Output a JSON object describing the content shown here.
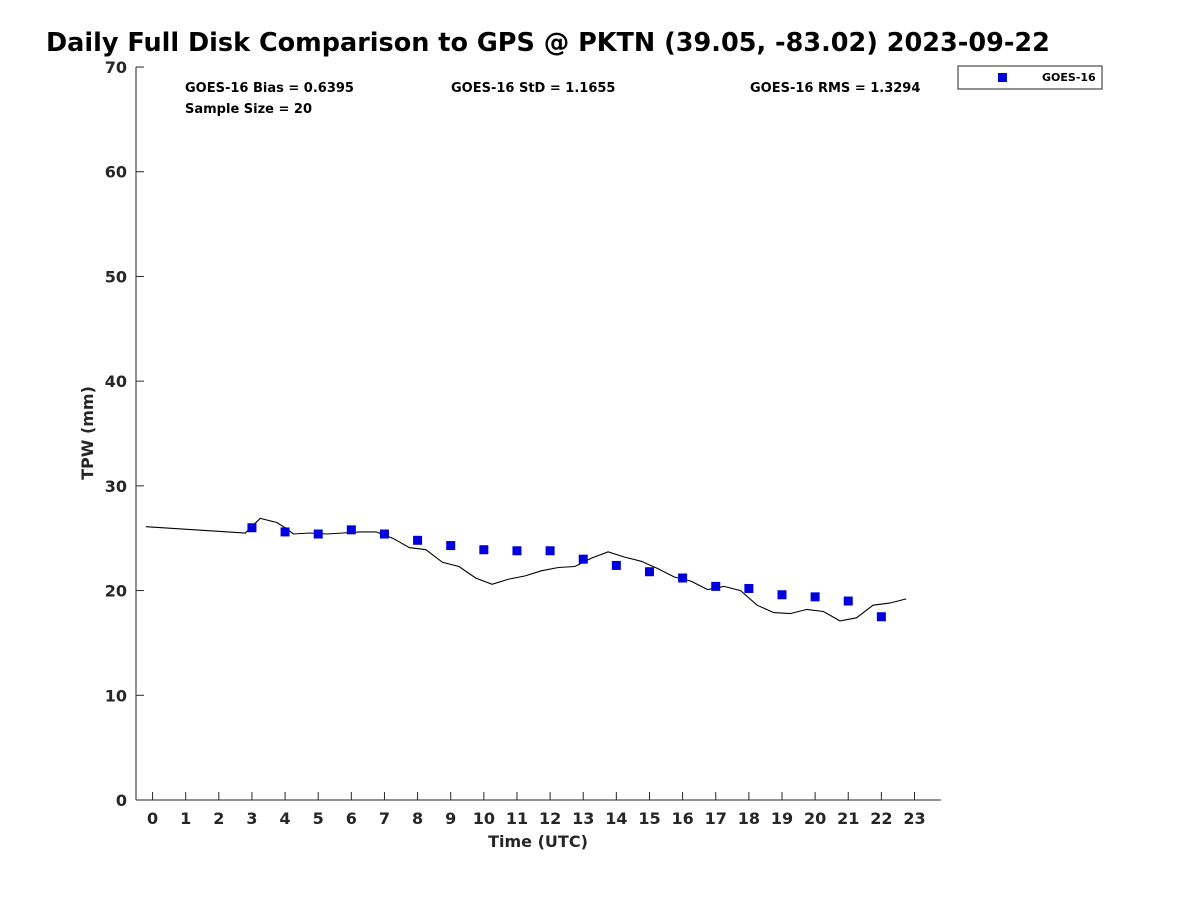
{
  "title": "Daily Full Disk Comparison to GPS @ PKTN (39.05, -83.02) 2023-09-22",
  "stats": {
    "bias": "GOES-16 Bias = 0.6395",
    "std": "GOES-16 StD = 1.1655",
    "rms": "GOES-16 RMS = 1.3294",
    "sample": "Sample Size = 20"
  },
  "colors": {
    "marker": "#0000dd",
    "line": "#000000",
    "axis": "#262626"
  },
  "chart_data": {
    "type": "scatter",
    "xlabel": "Time (UTC)",
    "ylabel": "TPW (mm)",
    "xlim": [
      -0.5,
      23.8
    ],
    "ylim": [
      0,
      70
    ],
    "xticks": [
      0,
      1,
      2,
      3,
      4,
      5,
      6,
      7,
      8,
      9,
      10,
      11,
      12,
      13,
      14,
      15,
      16,
      17,
      18,
      19,
      20,
      21,
      22,
      23
    ],
    "yticks": [
      0,
      10,
      20,
      30,
      40,
      50,
      60,
      70
    ],
    "legend": {
      "position": "top-right",
      "entries": [
        "GOES-16"
      ]
    },
    "series": [
      {
        "name": "GOES-16",
        "kind": "scatter",
        "marker": "square",
        "x": [
          3,
          4,
          5,
          6,
          7,
          8,
          9,
          10,
          11,
          12,
          13,
          14,
          15,
          16,
          17,
          18,
          19,
          20,
          21,
          22
        ],
        "y": [
          26.0,
          25.6,
          25.4,
          25.8,
          25.4,
          24.8,
          24.3,
          23.9,
          23.8,
          23.8,
          23.0,
          22.4,
          21.8,
          21.2,
          20.4,
          20.2,
          19.6,
          19.4,
          19.0,
          17.5
        ]
      },
      {
        "kind": "line",
        "x": [
          -0.2,
          2.8,
          3.25,
          3.75,
          4.0,
          4.25,
          4.75,
          5.25,
          5.75,
          6.25,
          6.75,
          7.0,
          7.25,
          7.75,
          8.25,
          8.75,
          9.25,
          9.75,
          10.25,
          10.75,
          11.25,
          11.75,
          12.25,
          12.75,
          13.25,
          13.75,
          14.25,
          14.75,
          15.25,
          15.75,
          16.25,
          16.75,
          17.25,
          17.75,
          18.25,
          18.75,
          19.25,
          19.75,
          20.25,
          20.75,
          21.25,
          21.75,
          22.25,
          22.75
        ],
        "y": [
          26.1,
          25.5,
          26.9,
          26.5,
          26.0,
          25.4,
          25.5,
          25.4,
          25.5,
          25.6,
          25.6,
          25.3,
          25.0,
          24.1,
          23.9,
          22.7,
          22.3,
          21.2,
          20.6,
          21.1,
          21.4,
          21.9,
          22.2,
          22.3,
          23.1,
          23.7,
          23.2,
          22.8,
          22.1,
          21.3,
          20.9,
          20.1,
          20.4,
          20.0,
          18.6,
          17.9,
          17.8,
          18.2,
          18.0,
          17.1,
          17.4,
          18.6,
          18.8,
          19.2
        ]
      }
    ]
  }
}
